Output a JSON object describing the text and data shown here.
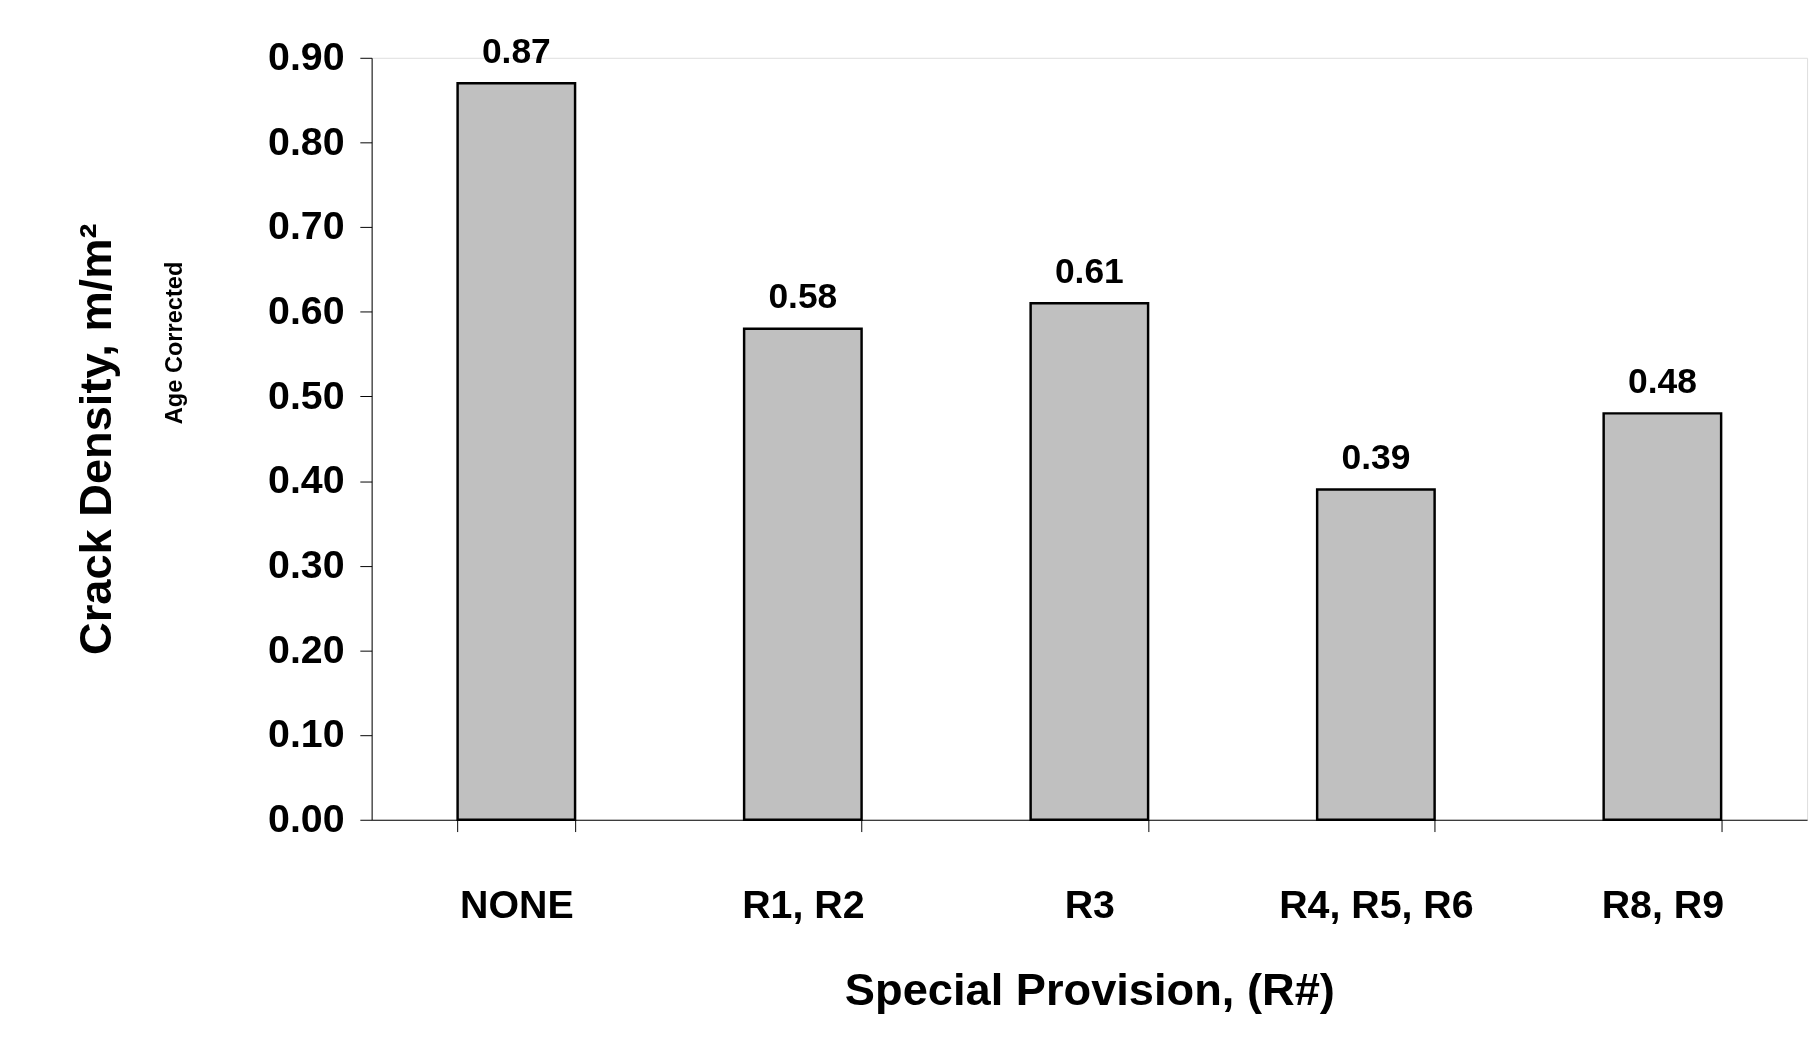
{
  "chart_data": {
    "type": "bar",
    "xlabel": "Special Provision, (R#)",
    "ylabel": "Crack Density, m/m²",
    "annotations": [
      "Age Corrected"
    ],
    "categories": [
      "NONE",
      "R1, R2",
      "R3",
      "R4, R5, R6",
      "R8, R9"
    ],
    "values": [
      0.87,
      0.58,
      0.61,
      0.39,
      0.48
    ],
    "color": "#c0c0c0",
    "ylim": [
      0,
      0.9
    ],
    "yticks": [
      {
        "value": 0,
        "label": "0.00"
      },
      {
        "value": 0.1,
        "label": "0.10"
      },
      {
        "value": 0.2,
        "label": "0.20"
      },
      {
        "value": 0.3,
        "label": "0.30"
      },
      {
        "value": 0.4,
        "label": "0.40"
      },
      {
        "value": 0.5,
        "label": "0.50"
      },
      {
        "value": 0.6,
        "label": "0.60"
      },
      {
        "value": 0.7,
        "label": "0.70"
      },
      {
        "value": 0.8,
        "label": "0.80"
      },
      {
        "value": 0.9,
        "label": "0.90"
      }
    ],
    "data_labels": true,
    "grid": false
  }
}
